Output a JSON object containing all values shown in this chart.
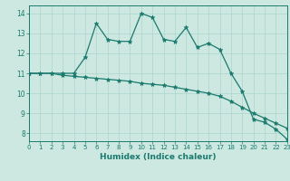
{
  "xlabel": "Humidex (Indice chaleur)",
  "background_color": "#cce8e0",
  "line_color": "#1a7a6e",
  "grid_color": "#aad4cc",
  "x_values": [
    0,
    1,
    2,
    3,
    4,
    5,
    6,
    7,
    8,
    9,
    10,
    11,
    12,
    13,
    14,
    15,
    16,
    17,
    18,
    19,
    20,
    21,
    22,
    23
  ],
  "line1_y": [
    11,
    11,
    11,
    11,
    11,
    11.8,
    13.5,
    12.7,
    12.6,
    12.6,
    14.0,
    13.8,
    12.7,
    12.6,
    13.3,
    12.3,
    12.5,
    12.2,
    11.0,
    10.1,
    8.7,
    8.55,
    8.2,
    7.7
  ],
  "line2_y": [
    11,
    11,
    11,
    10.9,
    10.85,
    10.8,
    10.75,
    10.7,
    10.65,
    10.6,
    10.5,
    10.45,
    10.4,
    10.3,
    10.2,
    10.1,
    10.0,
    9.85,
    9.6,
    9.3,
    9.0,
    8.75,
    8.5,
    8.25
  ],
  "xlim": [
    0,
    23
  ],
  "ylim": [
    7.6,
    14.4
  ],
  "yticks": [
    8,
    9,
    10,
    11,
    12,
    13,
    14
  ],
  "xticks": [
    0,
    1,
    2,
    3,
    4,
    5,
    6,
    7,
    8,
    9,
    10,
    11,
    12,
    13,
    14,
    15,
    16,
    17,
    18,
    19,
    20,
    21,
    22,
    23
  ]
}
